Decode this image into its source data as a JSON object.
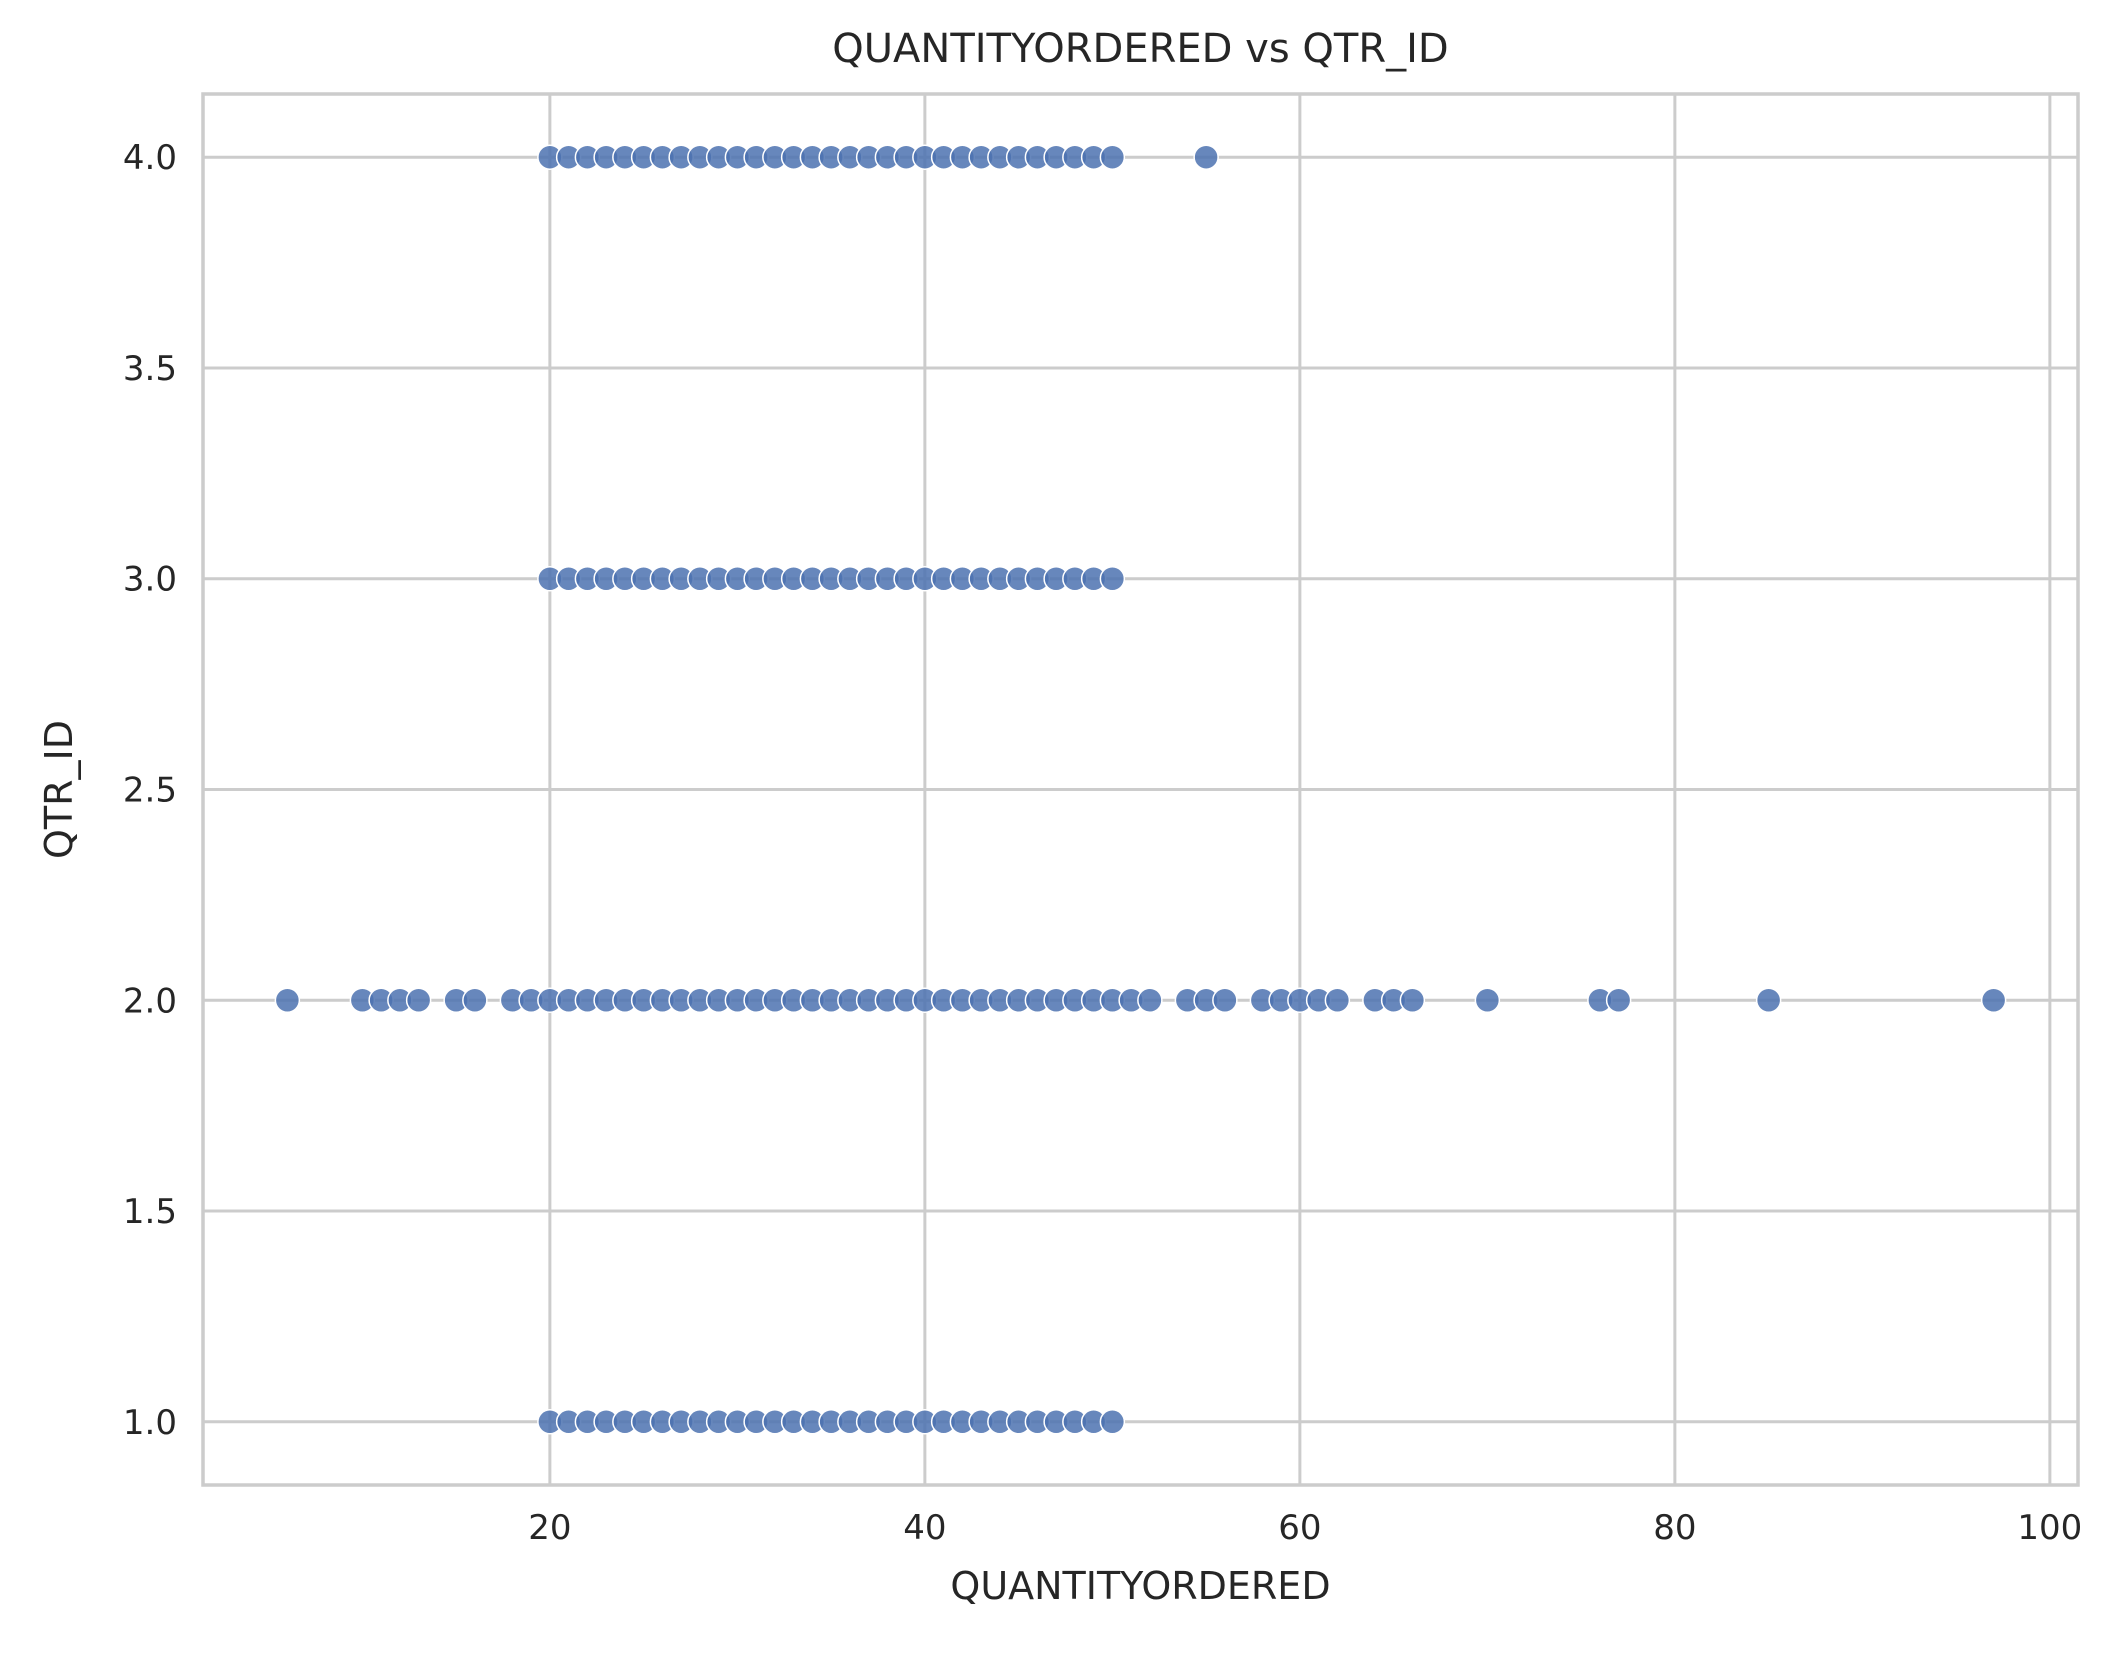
{
  "chart_data": {
    "type": "scatter",
    "title": "QUANTITYORDERED vs QTR_ID",
    "xlabel": "QUANTITYORDERED",
    "ylabel": "QTR_ID",
    "xlim": [
      1.5,
      101.5
    ],
    "ylim": [
      0.85,
      4.15
    ],
    "xticks": [
      20,
      40,
      60,
      80,
      100
    ],
    "xtick_labels": [
      "20",
      "40",
      "60",
      "80",
      "100"
    ],
    "yticks": [
      1.0,
      1.5,
      2.0,
      2.5,
      3.0,
      3.5,
      4.0
    ],
    "ytick_labels": [
      "1.0",
      "1.5",
      "2.0",
      "2.5",
      "3.0",
      "3.5",
      "4.0"
    ],
    "grid": true,
    "legend": "none",
    "marker_color": "#4c72b0",
    "series": [
      {
        "values": [
          {
            "x": 20,
            "y": 1.0
          },
          {
            "x": 21,
            "y": 1.0
          },
          {
            "x": 22,
            "y": 1.0
          },
          {
            "x": 23,
            "y": 1.0
          },
          {
            "x": 24,
            "y": 1.0
          },
          {
            "x": 25,
            "y": 1.0
          },
          {
            "x": 26,
            "y": 1.0
          },
          {
            "x": 27,
            "y": 1.0
          },
          {
            "x": 28,
            "y": 1.0
          },
          {
            "x": 29,
            "y": 1.0
          },
          {
            "x": 30,
            "y": 1.0
          },
          {
            "x": 31,
            "y": 1.0
          },
          {
            "x": 32,
            "y": 1.0
          },
          {
            "x": 33,
            "y": 1.0
          },
          {
            "x": 34,
            "y": 1.0
          },
          {
            "x": 35,
            "y": 1.0
          },
          {
            "x": 36,
            "y": 1.0
          },
          {
            "x": 37,
            "y": 1.0
          },
          {
            "x": 38,
            "y": 1.0
          },
          {
            "x": 39,
            "y": 1.0
          },
          {
            "x": 40,
            "y": 1.0
          },
          {
            "x": 41,
            "y": 1.0
          },
          {
            "x": 42,
            "y": 1.0
          },
          {
            "x": 43,
            "y": 1.0
          },
          {
            "x": 44,
            "y": 1.0
          },
          {
            "x": 45,
            "y": 1.0
          },
          {
            "x": 46,
            "y": 1.0
          },
          {
            "x": 47,
            "y": 1.0
          },
          {
            "x": 48,
            "y": 1.0
          },
          {
            "x": 49,
            "y": 1.0
          },
          {
            "x": 50,
            "y": 1.0
          },
          {
            "x": 6,
            "y": 2.0
          },
          {
            "x": 10,
            "y": 2.0
          },
          {
            "x": 11,
            "y": 2.0
          },
          {
            "x": 12,
            "y": 2.0
          },
          {
            "x": 13,
            "y": 2.0
          },
          {
            "x": 15,
            "y": 2.0
          },
          {
            "x": 16,
            "y": 2.0
          },
          {
            "x": 18,
            "y": 2.0
          },
          {
            "x": 19,
            "y": 2.0
          },
          {
            "x": 20,
            "y": 2.0
          },
          {
            "x": 21,
            "y": 2.0
          },
          {
            "x": 22,
            "y": 2.0
          },
          {
            "x": 23,
            "y": 2.0
          },
          {
            "x": 24,
            "y": 2.0
          },
          {
            "x": 25,
            "y": 2.0
          },
          {
            "x": 26,
            "y": 2.0
          },
          {
            "x": 27,
            "y": 2.0
          },
          {
            "x": 28,
            "y": 2.0
          },
          {
            "x": 29,
            "y": 2.0
          },
          {
            "x": 30,
            "y": 2.0
          },
          {
            "x": 31,
            "y": 2.0
          },
          {
            "x": 32,
            "y": 2.0
          },
          {
            "x": 33,
            "y": 2.0
          },
          {
            "x": 34,
            "y": 2.0
          },
          {
            "x": 35,
            "y": 2.0
          },
          {
            "x": 36,
            "y": 2.0
          },
          {
            "x": 37,
            "y": 2.0
          },
          {
            "x": 38,
            "y": 2.0
          },
          {
            "x": 39,
            "y": 2.0
          },
          {
            "x": 40,
            "y": 2.0
          },
          {
            "x": 41,
            "y": 2.0
          },
          {
            "x": 42,
            "y": 2.0
          },
          {
            "x": 43,
            "y": 2.0
          },
          {
            "x": 44,
            "y": 2.0
          },
          {
            "x": 45,
            "y": 2.0
          },
          {
            "x": 46,
            "y": 2.0
          },
          {
            "x": 47,
            "y": 2.0
          },
          {
            "x": 48,
            "y": 2.0
          },
          {
            "x": 49,
            "y": 2.0
          },
          {
            "x": 50,
            "y": 2.0
          },
          {
            "x": 51,
            "y": 2.0
          },
          {
            "x": 52,
            "y": 2.0
          },
          {
            "x": 54,
            "y": 2.0
          },
          {
            "x": 55,
            "y": 2.0
          },
          {
            "x": 56,
            "y": 2.0
          },
          {
            "x": 58,
            "y": 2.0
          },
          {
            "x": 59,
            "y": 2.0
          },
          {
            "x": 60,
            "y": 2.0
          },
          {
            "x": 61,
            "y": 2.0
          },
          {
            "x": 62,
            "y": 2.0
          },
          {
            "x": 64,
            "y": 2.0
          },
          {
            "x": 65,
            "y": 2.0
          },
          {
            "x": 66,
            "y": 2.0
          },
          {
            "x": 70,
            "y": 2.0
          },
          {
            "x": 76,
            "y": 2.0
          },
          {
            "x": 77,
            "y": 2.0
          },
          {
            "x": 85,
            "y": 2.0
          },
          {
            "x": 97,
            "y": 2.0
          },
          {
            "x": 20,
            "y": 3.0
          },
          {
            "x": 21,
            "y": 3.0
          },
          {
            "x": 22,
            "y": 3.0
          },
          {
            "x": 23,
            "y": 3.0
          },
          {
            "x": 24,
            "y": 3.0
          },
          {
            "x": 25,
            "y": 3.0
          },
          {
            "x": 26,
            "y": 3.0
          },
          {
            "x": 27,
            "y": 3.0
          },
          {
            "x": 28,
            "y": 3.0
          },
          {
            "x": 29,
            "y": 3.0
          },
          {
            "x": 30,
            "y": 3.0
          },
          {
            "x": 31,
            "y": 3.0
          },
          {
            "x": 32,
            "y": 3.0
          },
          {
            "x": 33,
            "y": 3.0
          },
          {
            "x": 34,
            "y": 3.0
          },
          {
            "x": 35,
            "y": 3.0
          },
          {
            "x": 36,
            "y": 3.0
          },
          {
            "x": 37,
            "y": 3.0
          },
          {
            "x": 38,
            "y": 3.0
          },
          {
            "x": 39,
            "y": 3.0
          },
          {
            "x": 40,
            "y": 3.0
          },
          {
            "x": 41,
            "y": 3.0
          },
          {
            "x": 42,
            "y": 3.0
          },
          {
            "x": 43,
            "y": 3.0
          },
          {
            "x": 44,
            "y": 3.0
          },
          {
            "x": 45,
            "y": 3.0
          },
          {
            "x": 46,
            "y": 3.0
          },
          {
            "x": 47,
            "y": 3.0
          },
          {
            "x": 48,
            "y": 3.0
          },
          {
            "x": 49,
            "y": 3.0
          },
          {
            "x": 50,
            "y": 3.0
          },
          {
            "x": 20,
            "y": 4.0
          },
          {
            "x": 21,
            "y": 4.0
          },
          {
            "x": 22,
            "y": 4.0
          },
          {
            "x": 23,
            "y": 4.0
          },
          {
            "x": 24,
            "y": 4.0
          },
          {
            "x": 25,
            "y": 4.0
          },
          {
            "x": 26,
            "y": 4.0
          },
          {
            "x": 27,
            "y": 4.0
          },
          {
            "x": 28,
            "y": 4.0
          },
          {
            "x": 29,
            "y": 4.0
          },
          {
            "x": 30,
            "y": 4.0
          },
          {
            "x": 31,
            "y": 4.0
          },
          {
            "x": 32,
            "y": 4.0
          },
          {
            "x": 33,
            "y": 4.0
          },
          {
            "x": 34,
            "y": 4.0
          },
          {
            "x": 35,
            "y": 4.0
          },
          {
            "x": 36,
            "y": 4.0
          },
          {
            "x": 37,
            "y": 4.0
          },
          {
            "x": 38,
            "y": 4.0
          },
          {
            "x": 39,
            "y": 4.0
          },
          {
            "x": 40,
            "y": 4.0
          },
          {
            "x": 41,
            "y": 4.0
          },
          {
            "x": 42,
            "y": 4.0
          },
          {
            "x": 43,
            "y": 4.0
          },
          {
            "x": 44,
            "y": 4.0
          },
          {
            "x": 45,
            "y": 4.0
          },
          {
            "x": 46,
            "y": 4.0
          },
          {
            "x": 47,
            "y": 4.0
          },
          {
            "x": 48,
            "y": 4.0
          },
          {
            "x": 49,
            "y": 4.0
          },
          {
            "x": 50,
            "y": 4.0
          },
          {
            "x": 55,
            "y": 4.0
          }
        ]
      }
    ]
  }
}
